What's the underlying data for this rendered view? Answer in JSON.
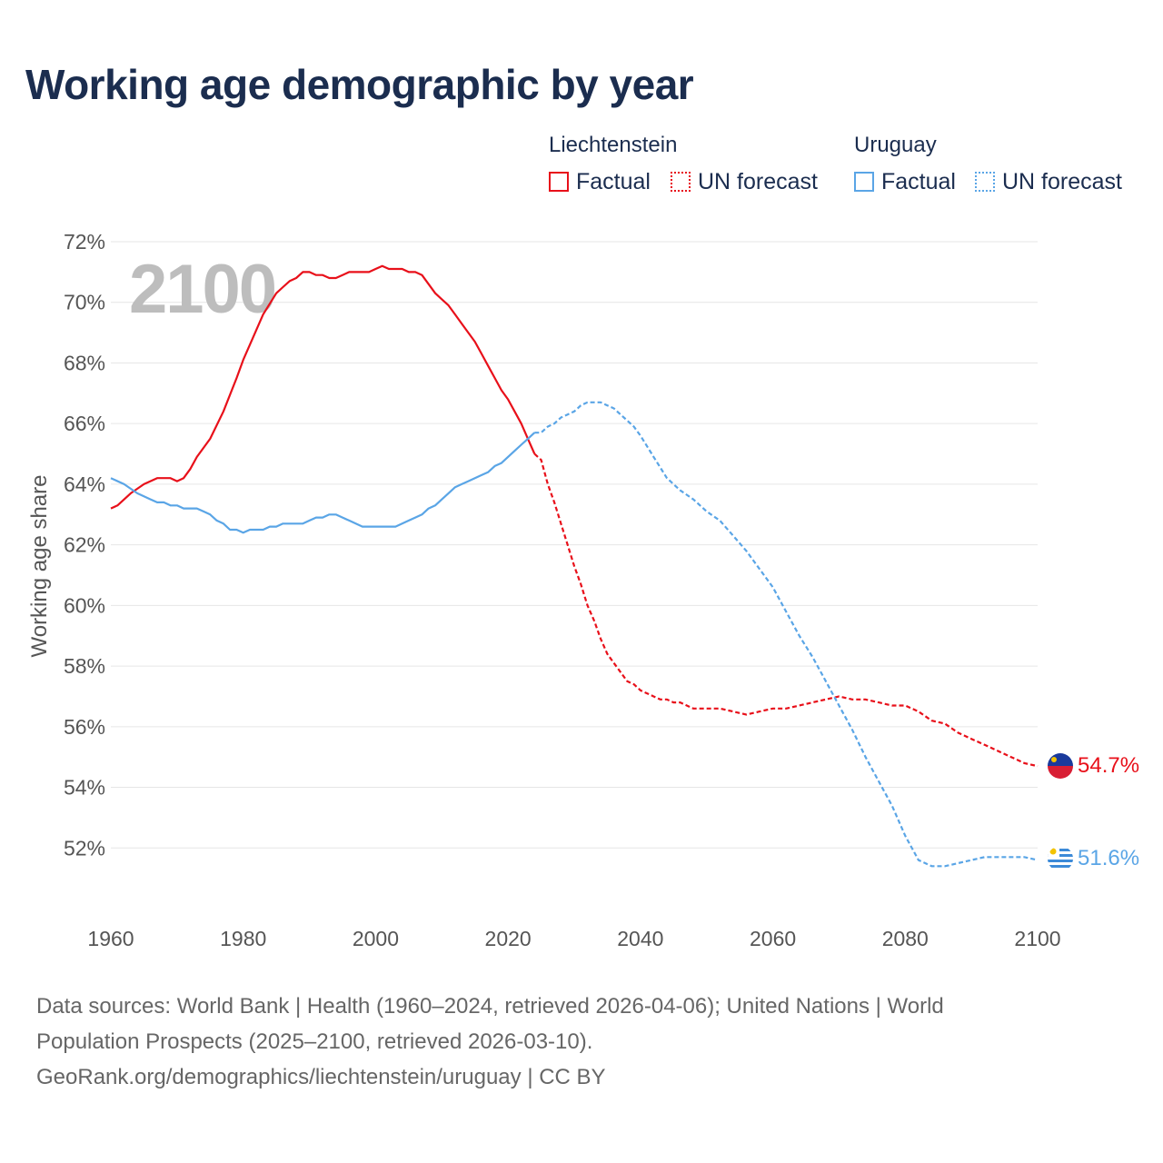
{
  "title": "Working age demographic by year",
  "legend": {
    "groups": [
      {
        "name": "Liechtenstein",
        "color": "#e8101a",
        "factual": "Factual",
        "forecast": "UN forecast"
      },
      {
        "name": "Uruguay",
        "color": "#5aa5e6",
        "factual": "Factual",
        "forecast": "UN forecast"
      }
    ]
  },
  "year_watermark": "2100",
  "sources": {
    "line1": "Data sources: World Bank | Health (1960–2024, retrieved 2026-04-06); United Nations | World",
    "line2": "Population Prospects (2025–2100, retrieved 2026-03-10).",
    "line3": "GeoRank.org/demographics/liechtenstein/uruguay | CC BY"
  },
  "chart_data": {
    "type": "line",
    "title": "Working age demographic by year",
    "xlabel": "",
    "ylabel": "Working age share",
    "xlim": [
      1960,
      2100
    ],
    "ylim": [
      50,
      72
    ],
    "x_ticks": [
      1960,
      1980,
      2000,
      2020,
      2040,
      2060,
      2080,
      2100
    ],
    "y_ticks": [
      52,
      54,
      56,
      58,
      60,
      62,
      64,
      66,
      68,
      70,
      72
    ],
    "y_tick_suffix": "%",
    "grid": true,
    "factual_end_year": 2024,
    "series": [
      {
        "name": "Liechtenstein",
        "color": "#e8101a",
        "end_label": "54.7%",
        "x": [
          1960,
          1961,
          1963,
          1965,
          1967,
          1968,
          1969,
          1970,
          1971,
          1972,
          1973,
          1975,
          1977,
          1979,
          1980,
          1981,
          1983,
          1985,
          1986,
          1987,
          1988,
          1989,
          1990,
          1991,
          1992,
          1993,
          1994,
          1995,
          1996,
          1997,
          1998,
          1999,
          2000,
          2001,
          2002,
          2003,
          2004,
          2005,
          2006,
          2007,
          2008,
          2009,
          2010,
          2011,
          2012,
          2013,
          2014,
          2015,
          2016,
          2017,
          2018,
          2019,
          2020,
          2021,
          2022,
          2023,
          2024,
          2025,
          2026,
          2027,
          2028,
          2029,
          2030,
          2031,
          2032,
          2033,
          2034,
          2035,
          2036,
          2037,
          2038,
          2039,
          2040,
          2041,
          2042,
          2043,
          2044,
          2045,
          2046,
          2047,
          2048,
          2050,
          2052,
          2054,
          2056,
          2058,
          2060,
          2062,
          2064,
          2066,
          2068,
          2070,
          2072,
          2074,
          2076,
          2078,
          2080,
          2082,
          2084,
          2086,
          2088,
          2090,
          2092,
          2094,
          2096,
          2098,
          2100
        ],
        "y": [
          63.2,
          63.3,
          63.7,
          64.0,
          64.2,
          64.2,
          64.2,
          64.1,
          64.2,
          64.5,
          64.9,
          65.5,
          66.4,
          67.5,
          68.1,
          68.6,
          69.6,
          70.3,
          70.5,
          70.7,
          70.8,
          71.0,
          71.0,
          70.9,
          70.9,
          70.8,
          70.8,
          70.9,
          71.0,
          71.0,
          71.0,
          71.0,
          71.1,
          71.2,
          71.1,
          71.1,
          71.1,
          71.0,
          71.0,
          70.9,
          70.6,
          70.3,
          70.1,
          69.9,
          69.6,
          69.3,
          69.0,
          68.7,
          68.3,
          67.9,
          67.5,
          67.1,
          66.8,
          66.4,
          66.0,
          65.5,
          65.0,
          64.8,
          64.0,
          63.4,
          62.7,
          62.0,
          61.3,
          60.7,
          60.0,
          59.5,
          58.9,
          58.4,
          58.1,
          57.8,
          57.5,
          57.4,
          57.2,
          57.1,
          57.0,
          56.9,
          56.9,
          56.8,
          56.8,
          56.7,
          56.6,
          56.6,
          56.6,
          56.5,
          56.4,
          56.5,
          56.6,
          56.6,
          56.7,
          56.8,
          56.9,
          57.0,
          56.9,
          56.9,
          56.8,
          56.7,
          56.7,
          56.5,
          56.2,
          56.1,
          55.8,
          55.6,
          55.4,
          55.2,
          55.0,
          54.8,
          54.7
        ]
      },
      {
        "name": "Uruguay",
        "color": "#5aa5e6",
        "end_label": "51.6%",
        "x": [
          1960,
          1962,
          1964,
          1966,
          1967,
          1968,
          1969,
          1970,
          1971,
          1972,
          1973,
          1974,
          1975,
          1976,
          1977,
          1978,
          1979,
          1980,
          1981,
          1982,
          1983,
          1984,
          1985,
          1986,
          1987,
          1988,
          1989,
          1990,
          1991,
          1992,
          1993,
          1994,
          1995,
          1996,
          1997,
          1998,
          1999,
          2000,
          2001,
          2002,
          2003,
          2004,
          2005,
          2006,
          2007,
          2008,
          2009,
          2010,
          2011,
          2012,
          2013,
          2014,
          2015,
          2016,
          2017,
          2018,
          2019,
          2020,
          2021,
          2022,
          2023,
          2024,
          2025,
          2026,
          2027,
          2028,
          2029,
          2030,
          2031,
          2032,
          2033,
          2034,
          2035,
          2036,
          2037,
          2038,
          2039,
          2040,
          2042,
          2044,
          2046,
          2048,
          2050,
          2052,
          2054,
          2056,
          2058,
          2060,
          2062,
          2064,
          2066,
          2068,
          2070,
          2072,
          2074,
          2076,
          2078,
          2080,
          2082,
          2084,
          2086,
          2088,
          2090,
          2092,
          2094,
          2096,
          2098,
          2100
        ],
        "y": [
          64.2,
          64.0,
          63.7,
          63.5,
          63.4,
          63.4,
          63.3,
          63.3,
          63.2,
          63.2,
          63.2,
          63.1,
          63.0,
          62.8,
          62.7,
          62.5,
          62.5,
          62.4,
          62.5,
          62.5,
          62.5,
          62.6,
          62.6,
          62.7,
          62.7,
          62.7,
          62.7,
          62.8,
          62.9,
          62.9,
          63.0,
          63.0,
          62.9,
          62.8,
          62.7,
          62.6,
          62.6,
          62.6,
          62.6,
          62.6,
          62.6,
          62.7,
          62.8,
          62.9,
          63.0,
          63.2,
          63.3,
          63.5,
          63.7,
          63.9,
          64.0,
          64.1,
          64.2,
          64.3,
          64.4,
          64.6,
          64.7,
          64.9,
          65.1,
          65.3,
          65.5,
          65.7,
          65.7,
          65.9,
          66.0,
          66.2,
          66.3,
          66.4,
          66.6,
          66.7,
          66.7,
          66.7,
          66.6,
          66.5,
          66.3,
          66.1,
          65.9,
          65.6,
          64.9,
          64.2,
          63.8,
          63.5,
          63.1,
          62.8,
          62.3,
          61.8,
          61.2,
          60.6,
          59.8,
          59.0,
          58.3,
          57.5,
          56.7,
          55.9,
          55.0,
          54.2,
          53.4,
          52.4,
          51.6,
          51.4,
          51.4,
          51.5,
          51.6,
          51.7,
          51.7,
          51.7,
          51.7,
          51.6
        ]
      }
    ]
  }
}
